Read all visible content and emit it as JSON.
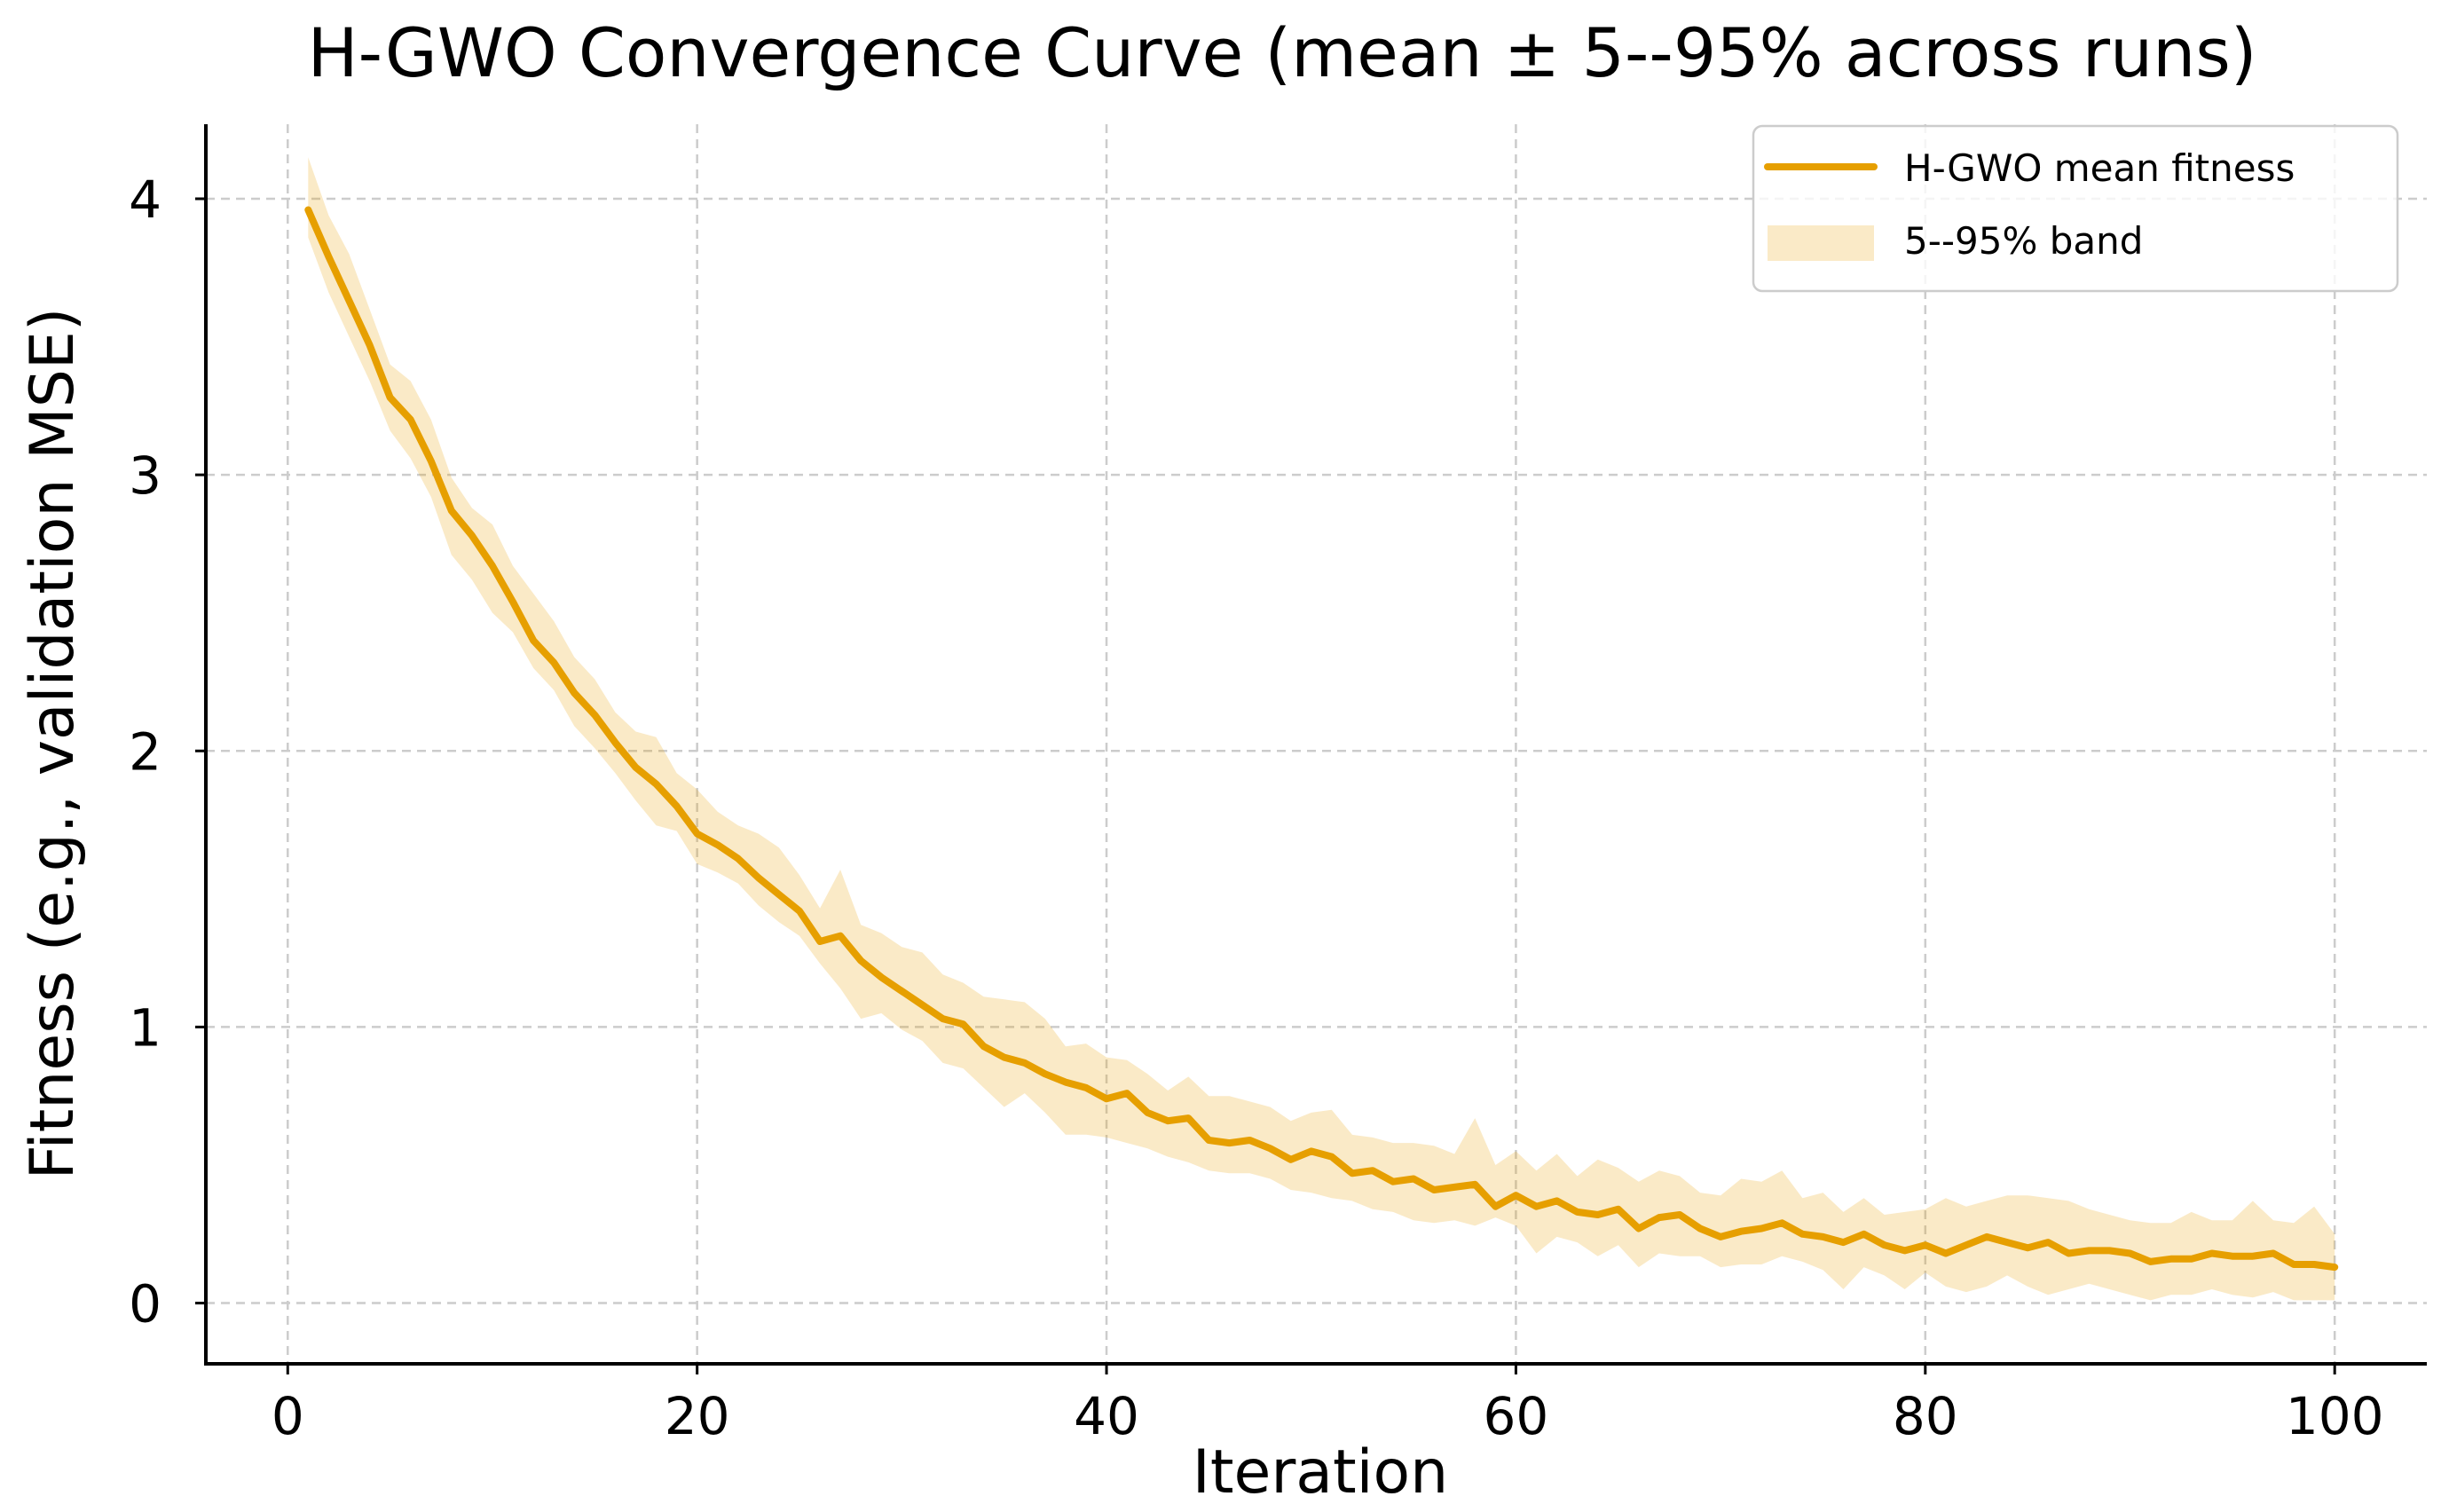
{
  "chart_data": {
    "type": "line",
    "title": "H-GWO Convergence Curve (mean ± 5--95% across runs)",
    "xlabel": "Iteration",
    "ylabel": "Fitness (e.g., validation MSE)",
    "xlim": [
      -4,
      104.5
    ],
    "ylim": [
      -0.22,
      4.27
    ],
    "xticks": [
      0,
      20,
      40,
      60,
      80,
      100
    ],
    "xtick_labels": [
      "0",
      "20",
      "40",
      "60",
      "80",
      "100"
    ],
    "yticks": [
      0,
      1,
      2,
      3,
      4
    ],
    "ytick_labels": [
      "0",
      "1",
      "2",
      "3",
      "4"
    ],
    "grid": true,
    "legend_position": "top-right",
    "x": [
      1,
      2,
      3,
      4,
      5,
      6,
      7,
      8,
      9,
      10,
      11,
      12,
      13,
      14,
      15,
      16,
      17,
      18,
      19,
      20,
      21,
      22,
      23,
      24,
      25,
      26,
      27,
      28,
      29,
      30,
      31,
      32,
      33,
      34,
      35,
      36,
      37,
      38,
      39,
      40,
      41,
      42,
      43,
      44,
      45,
      46,
      47,
      48,
      49,
      50,
      51,
      52,
      53,
      54,
      55,
      56,
      57,
      58,
      59,
      60,
      61,
      62,
      63,
      64,
      65,
      66,
      67,
      68,
      69,
      70,
      71,
      72,
      73,
      74,
      75,
      76,
      77,
      78,
      79,
      80,
      81,
      82,
      83,
      84,
      85,
      86,
      87,
      88,
      89,
      90,
      91,
      92,
      93,
      94,
      95,
      96,
      97,
      98,
      99,
      100
    ],
    "series": [
      {
        "name": "H-GWO mean fitness",
        "color": "#E69F00",
        "values": [
          3.96,
          3.79,
          3.63,
          3.47,
          3.28,
          3.2,
          3.05,
          2.87,
          2.78,
          2.67,
          2.54,
          2.4,
          2.32,
          2.21,
          2.13,
          2.03,
          1.94,
          1.88,
          1.8,
          1.7,
          1.66,
          1.61,
          1.54,
          1.48,
          1.42,
          1.31,
          1.33,
          1.24,
          1.18,
          1.13,
          1.08,
          1.03,
          1.01,
          0.93,
          0.89,
          0.87,
          0.83,
          0.8,
          0.78,
          0.74,
          0.76,
          0.69,
          0.66,
          0.67,
          0.59,
          0.58,
          0.59,
          0.56,
          0.52,
          0.55,
          0.53,
          0.47,
          0.48,
          0.44,
          0.45,
          0.41,
          0.42,
          0.43,
          0.35,
          0.39,
          0.35,
          0.37,
          0.33,
          0.32,
          0.34,
          0.27,
          0.31,
          0.32,
          0.27,
          0.24,
          0.26,
          0.27,
          0.29,
          0.25,
          0.24,
          0.22,
          0.25,
          0.21,
          0.19,
          0.21,
          0.18,
          0.21,
          0.24,
          0.22,
          0.2,
          0.22,
          0.18,
          0.19,
          0.19,
          0.18,
          0.15,
          0.16,
          0.16,
          0.18,
          0.17,
          0.17,
          0.18,
          0.14,
          0.14,
          0.13
        ]
      }
    ],
    "band": {
      "name": "5--95% band",
      "color": "#E69F00",
      "opacity": 0.22,
      "lower": [
        3.86,
        3.66,
        3.5,
        3.34,
        3.16,
        3.06,
        2.92,
        2.71,
        2.62,
        2.5,
        2.43,
        2.3,
        2.22,
        2.09,
        2.01,
        1.92,
        1.82,
        1.73,
        1.71,
        1.59,
        1.56,
        1.52,
        1.44,
        1.38,
        1.33,
        1.23,
        1.14,
        1.03,
        1.05,
        0.99,
        0.95,
        0.87,
        0.85,
        0.78,
        0.71,
        0.76,
        0.69,
        0.61,
        0.61,
        0.6,
        0.58,
        0.56,
        0.53,
        0.51,
        0.48,
        0.47,
        0.47,
        0.45,
        0.41,
        0.4,
        0.38,
        0.37,
        0.34,
        0.33,
        0.3,
        0.29,
        0.3,
        0.28,
        0.31,
        0.28,
        0.18,
        0.24,
        0.22,
        0.17,
        0.21,
        0.13,
        0.18,
        0.17,
        0.17,
        0.13,
        0.14,
        0.14,
        0.17,
        0.15,
        0.12,
        0.05,
        0.13,
        0.1,
        0.05,
        0.11,
        0.06,
        0.04,
        0.06,
        0.1,
        0.06,
        0.03,
        0.05,
        0.07,
        0.05,
        0.03,
        0.01,
        0.03,
        0.03,
        0.05,
        0.03,
        0.02,
        0.04,
        0.01,
        0.01,
        0.01
      ],
      "upper": [
        4.15,
        3.94,
        3.8,
        3.6,
        3.4,
        3.34,
        3.2,
        2.99,
        2.88,
        2.82,
        2.67,
        2.57,
        2.47,
        2.34,
        2.26,
        2.14,
        2.07,
        2.05,
        1.92,
        1.86,
        1.78,
        1.73,
        1.7,
        1.65,
        1.55,
        1.43,
        1.57,
        1.37,
        1.34,
        1.29,
        1.27,
        1.19,
        1.16,
        1.11,
        1.1,
        1.09,
        1.03,
        0.93,
        0.94,
        0.89,
        0.88,
        0.83,
        0.77,
        0.82,
        0.75,
        0.75,
        0.73,
        0.71,
        0.66,
        0.69,
        0.7,
        0.61,
        0.6,
        0.58,
        0.58,
        0.57,
        0.54,
        0.67,
        0.5,
        0.55,
        0.48,
        0.54,
        0.46,
        0.52,
        0.49,
        0.44,
        0.48,
        0.46,
        0.4,
        0.39,
        0.45,
        0.44,
        0.48,
        0.38,
        0.4,
        0.33,
        0.38,
        0.32,
        0.33,
        0.34,
        0.38,
        0.35,
        0.37,
        0.39,
        0.39,
        0.38,
        0.37,
        0.34,
        0.32,
        0.3,
        0.29,
        0.29,
        0.33,
        0.3,
        0.3,
        0.37,
        0.3,
        0.29,
        0.35,
        0.25
      ]
    }
  }
}
